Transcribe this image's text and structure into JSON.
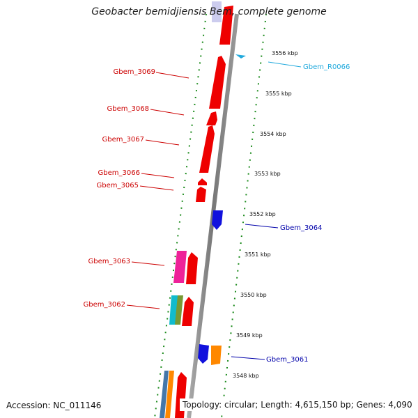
{
  "title": "Geobacter bemidjiensis Bem, complete genome",
  "accession": "Accession: NC_011146",
  "topology": "Topology: circular; Length: 4,615,150 bp; Genes: 4,090",
  "colors": {
    "label_left": "#cc0000",
    "label_rna": "#22aadd",
    "label_right": "#0000aa",
    "backbone": "#888888",
    "ticks": "#1a8a1a",
    "gene_red": "#ee0000",
    "gene_blue": "#1111dd",
    "gene_pink": "#ee2299",
    "gene_cyan": "#11bbcc",
    "gene_olive": "#779933",
    "gene_orange": "#ff8800",
    "gene_steel": "#4477aa",
    "gene_lavender": "#ccccee"
  },
  "kbp_labels": [
    "3556 kbp",
    "3555 kbp",
    "3554 kbp",
    "3553 kbp",
    "3552 kbp",
    "3551 kbp",
    "3550 kbp",
    "3549 kbp",
    "3548 kbp"
  ],
  "gene_labels_left": [
    "Gbem_3069",
    "Gbem_3068",
    "Gbem_3067",
    "Gbem_3066",
    "Gbem_3065",
    "Gbem_3063",
    "Gbem_3062"
  ],
  "gene_labels_right": [
    "Gbem_R0066",
    "Gbem_3064",
    "Gbem_3061"
  ]
}
